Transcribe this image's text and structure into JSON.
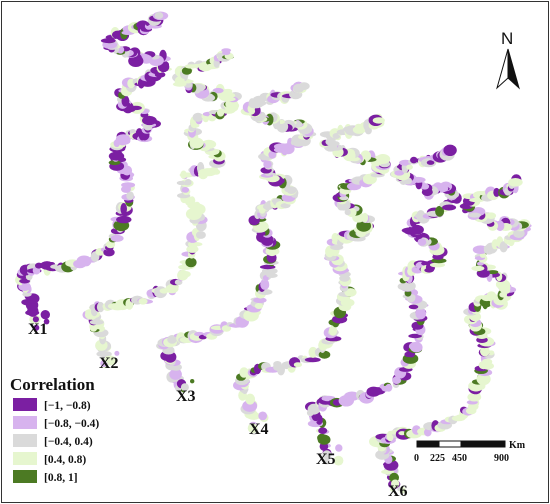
{
  "panels": [
    {
      "label": "X1",
      "colors": [
        "#7b1fa2",
        "#d7b3ee",
        "#dadada",
        "#e6f6cf",
        "#4c7a23"
      ],
      "weights": [
        0.45,
        0.25,
        0.15,
        0.1,
        0.05
      ]
    },
    {
      "label": "X2",
      "colors": [
        "#7b1fa2",
        "#d7b3ee",
        "#dadada",
        "#e6f6cf",
        "#4c7a23"
      ],
      "weights": [
        0.05,
        0.15,
        0.3,
        0.45,
        0.05
      ]
    },
    {
      "label": "X3",
      "colors": [
        "#7b1fa2",
        "#d7b3ee",
        "#dadada",
        "#e6f6cf",
        "#4c7a23"
      ],
      "weights": [
        0.1,
        0.25,
        0.35,
        0.25,
        0.05
      ]
    },
    {
      "label": "X4",
      "colors": [
        "#7b1fa2",
        "#d7b3ee",
        "#dadada",
        "#e6f6cf",
        "#4c7a23"
      ],
      "weights": [
        0.08,
        0.17,
        0.25,
        0.4,
        0.1
      ]
    },
    {
      "label": "X5",
      "colors": [
        "#7b1fa2",
        "#d7b3ee",
        "#dadada",
        "#e6f6cf",
        "#4c7a23"
      ],
      "weights": [
        0.35,
        0.3,
        0.2,
        0.1,
        0.05
      ]
    },
    {
      "label": "X6",
      "colors": [
        "#7b1fa2",
        "#d7b3ee",
        "#dadada",
        "#e6f6cf",
        "#4c7a23"
      ],
      "weights": [
        0.15,
        0.25,
        0.15,
        0.35,
        0.1
      ]
    }
  ],
  "legend": {
    "title": "Correlation",
    "items": [
      {
        "label": "[−1, −0.8)",
        "color": "#7b1fa2"
      },
      {
        "label": "[−0.8, −0.4)",
        "color": "#d7b3ee"
      },
      {
        "label": "[−0.4, 0.4)",
        "color": "#dadada"
      },
      {
        "label": "[0.4, 0.8)",
        "color": "#e6f6cf"
      },
      {
        "label": "[0.8, 1]",
        "color": "#4c7a23"
      }
    ]
  },
  "north_arrow": {
    "label": "N",
    "icon": "north-arrow-icon"
  },
  "scale_bar": {
    "unit": "Km",
    "ticks": [
      "0",
      "225",
      "450",
      "900"
    ]
  }
}
